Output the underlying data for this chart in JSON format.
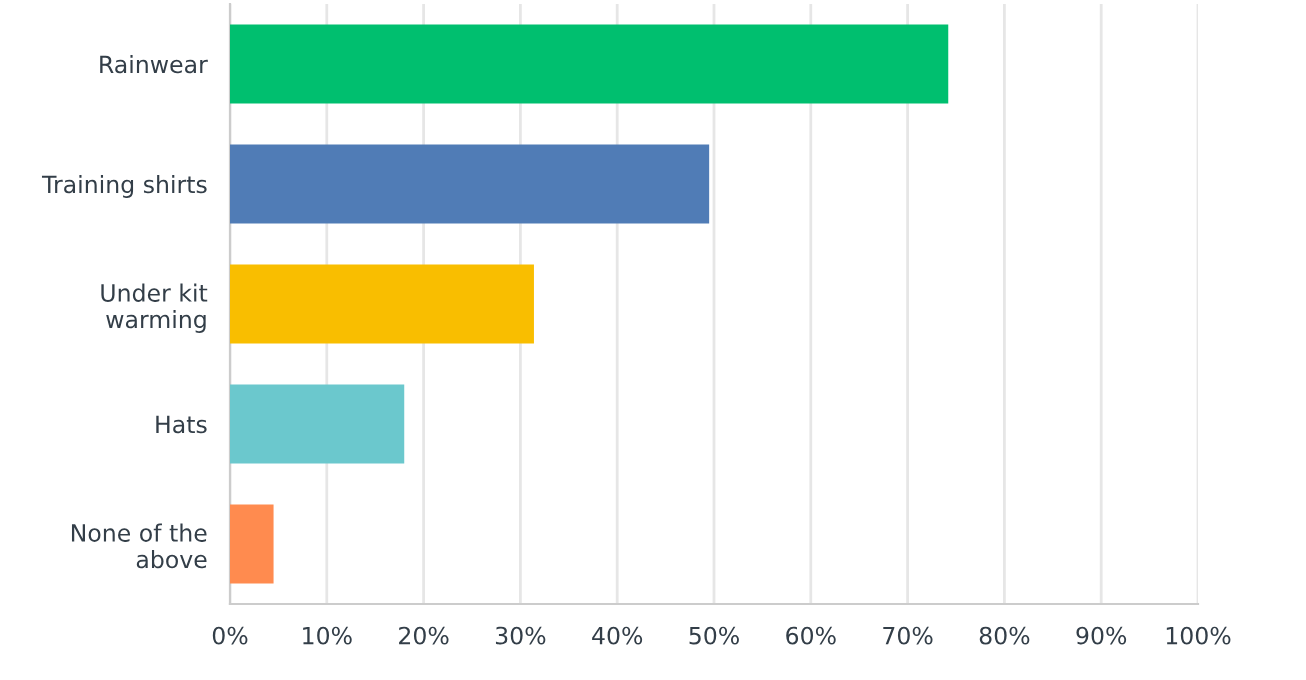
{
  "chart_data": {
    "type": "bar",
    "orientation": "horizontal",
    "categories": [
      "Rainwear",
      "Training shirts",
      "Under kit\nwarming",
      "Hats",
      "None of the\nabove"
    ],
    "values": [
      74.2,
      49.5,
      31.4,
      18.0,
      4.5
    ],
    "colors": [
      "#00bf6f",
      "#507cb6",
      "#f9be00",
      "#6bc8cd",
      "#ff8b4f"
    ],
    "xlim": [
      0,
      100
    ],
    "xticks": [
      {
        "value": 0,
        "label": "0%"
      },
      {
        "value": 10,
        "label": "10%"
      },
      {
        "value": 20,
        "label": "20%"
      },
      {
        "value": 30,
        "label": "30%"
      },
      {
        "value": 40,
        "label": "40%"
      },
      {
        "value": 50,
        "label": "50%"
      },
      {
        "value": 60,
        "label": "60%"
      },
      {
        "value": 70,
        "label": "70%"
      },
      {
        "value": 80,
        "label": "80%"
      },
      {
        "value": 90,
        "label": "90%"
      },
      {
        "value": 100,
        "label": "100%"
      }
    ],
    "grid": "x",
    "legend": false
  }
}
